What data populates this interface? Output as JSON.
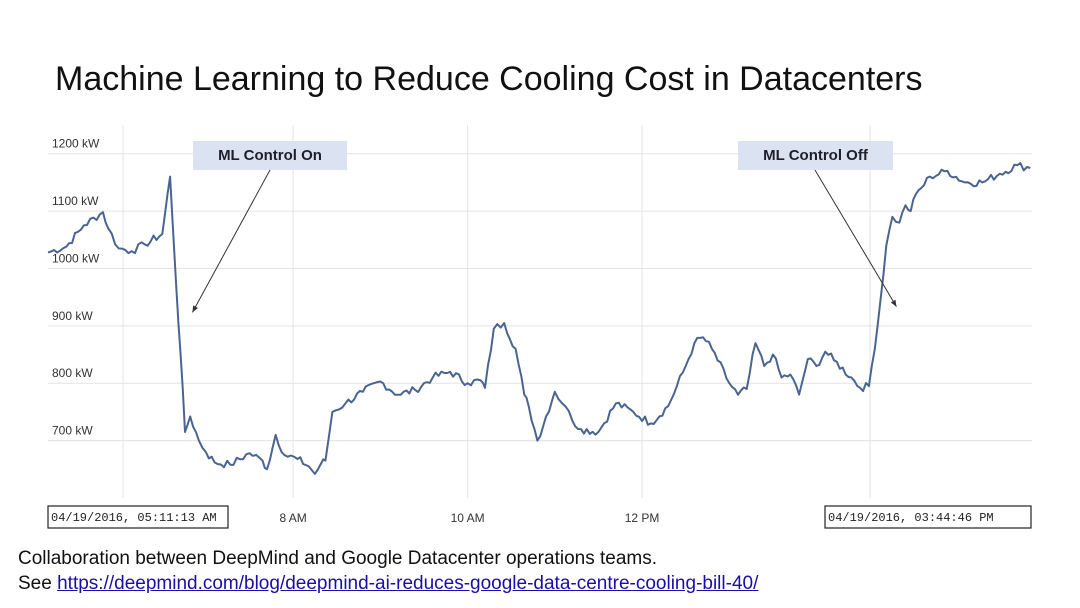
{
  "slide": {
    "title": "Machine Learning to Reduce Cooling Cost in Datacenters",
    "footer_text": "Collaboration between DeepMind and Google Datacenter operations teams.",
    "footer_see": "See ",
    "footer_link": "https://deepmind.com/blog/deepmind-ai-reduces-google-data-centre-cooling-bill-40/"
  },
  "chart_data": {
    "type": "line",
    "title": "",
    "xlabel": "",
    "ylabel": "",
    "ylim": [
      600,
      1250
    ],
    "xlim_hours": [
      5.19,
      16.47
    ],
    "grid": true,
    "y_ticks": [
      {
        "value": 700,
        "label": "700 kW"
      },
      {
        "value": 800,
        "label": "800 kW"
      },
      {
        "value": 900,
        "label": "900 kW"
      },
      {
        "value": 1000,
        "label": "1000 kW"
      },
      {
        "value": 1100,
        "label": "1100 kW"
      },
      {
        "value": 1200,
        "label": "1200 kW"
      }
    ],
    "x_ticks": [
      {
        "value": 8,
        "label": "8 AM"
      },
      {
        "value": 10,
        "label": "10 AM"
      },
      {
        "value": 12,
        "label": "12 PM"
      }
    ],
    "start_label": "04/19/2016, 05:11:13 AM",
    "end_label": "04/19/2016, 03:44:46 PM",
    "line_color": "#4a6491",
    "series": [
      {
        "name": "",
        "x": [
          5.19,
          5.4,
          5.6,
          5.82,
          5.88,
          6.0,
          6.15,
          6.3,
          6.5,
          6.59,
          6.66,
          6.71,
          6.76,
          6.82,
          6.92,
          7.0,
          7.1,
          7.28,
          7.5,
          7.65,
          7.7,
          7.8,
          7.9,
          8.05,
          8.18,
          8.25,
          8.32,
          8.37,
          8.45,
          8.6,
          8.8,
          9.0,
          9.2,
          9.4,
          9.6,
          9.8,
          10.0,
          10.15,
          10.2,
          10.3,
          10.42,
          10.55,
          10.65,
          10.7,
          10.8,
          11.0,
          11.12,
          11.2,
          11.3,
          11.5,
          11.7,
          11.9,
          12.1,
          12.3,
          12.5,
          12.6,
          12.7,
          12.8,
          13.0,
          13.1,
          13.2,
          13.3,
          13.4,
          13.5,
          13.6,
          13.7,
          13.8,
          13.9,
          14.0,
          14.1,
          14.2,
          14.4,
          14.5,
          14.6,
          14.7,
          14.8,
          14.87,
          14.95,
          15.02,
          15.08,
          15.14,
          15.2,
          15.3,
          15.5,
          15.7,
          15.9,
          16.1,
          16.3,
          16.45
        ],
        "values": [
          1028,
          1038,
          1075,
          1098,
          1070,
          1035,
          1030,
          1042,
          1060,
          1160,
          970,
          850,
          715,
          742,
          700,
          680,
          662,
          658,
          678,
          665,
          650,
          710,
          675,
          668,
          655,
          642,
          660,
          665,
          750,
          765,
          785,
          803,
          780,
          788,
          810,
          820,
          800,
          805,
          792,
          895,
          905,
          860,
          780,
          760,
          700,
          785,
          760,
          735,
          720,
          715,
          765,
          750,
          730,
          760,
          830,
          870,
          880,
          860,
          800,
          780,
          790,
          870,
          830,
          850,
          810,
          815,
          780,
          842,
          830,
          855,
          840,
          810,
          792,
          795,
          900,
          1040,
          1090,
          1080,
          1110,
          1100,
          1130,
          1140,
          1160,
          1170,
          1150,
          1150,
          1165,
          1180,
          1175
        ],
        "smooth_seed": 7
      }
    ],
    "annotations": [
      {
        "label": "ML Control On",
        "x": 6.8,
        "y": 920
      },
      {
        "label": "ML Control Off",
        "x": 14.87,
        "y": 930
      }
    ]
  }
}
